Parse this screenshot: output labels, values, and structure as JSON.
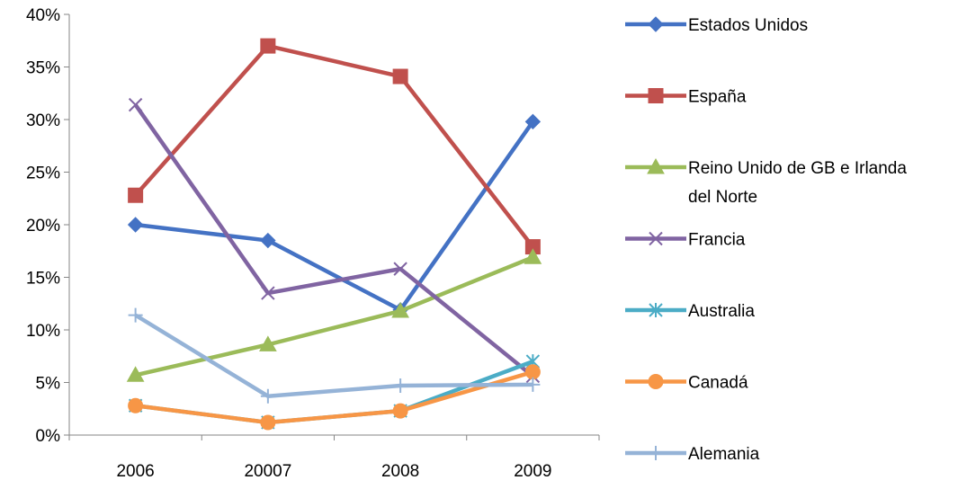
{
  "chart_data": {
    "type": "line",
    "title": "",
    "xlabel": "",
    "ylabel": "",
    "categories": [
      "2006",
      "20007",
      "2008",
      "2009"
    ],
    "y_ticks": [
      "0%",
      "5%",
      "10%",
      "15%",
      "20%",
      "25%",
      "30%",
      "35%",
      "40%"
    ],
    "ylim": [
      0,
      40
    ],
    "y_unit": "percent",
    "grid": false,
    "legend_position": "right",
    "series": [
      {
        "name": "Estados Unidos",
        "values": [
          20.0,
          18.5,
          11.9,
          29.8
        ],
        "color": "#4472C4",
        "marker": "diamond"
      },
      {
        "name": "España",
        "values": [
          22.8,
          37.0,
          34.1,
          17.9
        ],
        "color": "#C0504D",
        "marker": "square"
      },
      {
        "name": "Reino Unido de GB e Irlanda del Norte",
        "values": [
          5.7,
          8.6,
          11.8,
          16.9
        ],
        "color": "#9BBB59",
        "marker": "triangle"
      },
      {
        "name": "Francia",
        "values": [
          31.4,
          13.5,
          15.8,
          5.6
        ],
        "color": "#8064A2",
        "marker": "x"
      },
      {
        "name": "Australia",
        "values": [
          2.8,
          1.2,
          2.3,
          7.0
        ],
        "color": "#4BACC6",
        "marker": "asterisk"
      },
      {
        "name": "Canadá",
        "values": [
          2.8,
          1.2,
          2.3,
          6.0
        ],
        "color": "#F79646",
        "marker": "circle"
      },
      {
        "name": "Alemania",
        "values": [
          11.4,
          3.7,
          4.7,
          4.8
        ],
        "color": "#95B3D7",
        "marker": "plus"
      }
    ]
  }
}
